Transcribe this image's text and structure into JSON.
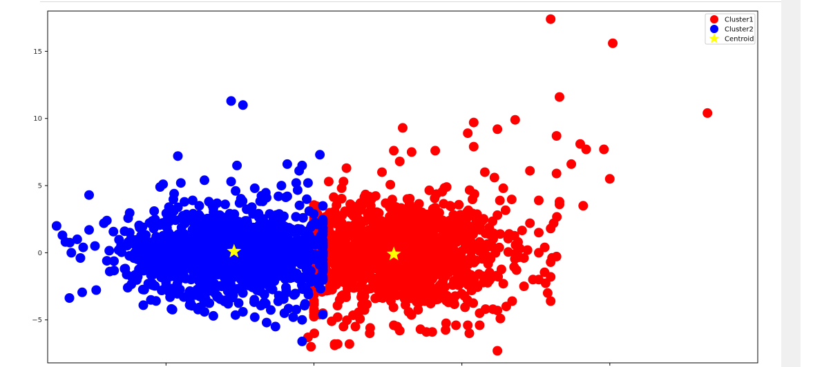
{
  "chart_data": {
    "type": "scatter",
    "title": "",
    "xlabel": "",
    "ylabel": "",
    "xlim": [
      -9.0,
      15.0
    ],
    "ylim": [
      -8.2,
      18.0
    ],
    "yticks": [
      {
        "value": -5,
        "label": "−5"
      },
      {
        "value": 0,
        "label": "0"
      },
      {
        "value": 5,
        "label": "5"
      },
      {
        "value": 10,
        "label": "10"
      },
      {
        "value": 15,
        "label": "15"
      }
    ],
    "xticks": [
      -5,
      0,
      5,
      10
    ],
    "grid": false,
    "legend": {
      "position": "top-right"
    },
    "series": [
      {
        "name": "Cluster1",
        "color": "#ff0000",
        "marker": "circle",
        "cloud": {
          "n": 1200,
          "cx": 2.8,
          "cy": 0.0,
          "sx": 1.8,
          "sy": 2.0,
          "xmin": 0.0,
          "xmax": 9.0,
          "ymin": -6.0,
          "ymax": 6.0
        },
        "points": [
          [
            8.0,
            17.4
          ],
          [
            10.1,
            15.6
          ],
          [
            13.3,
            10.4
          ],
          [
            8.3,
            11.6
          ],
          [
            8.2,
            8.7
          ],
          [
            6.8,
            9.9
          ],
          [
            5.4,
            9.7
          ],
          [
            3.0,
            9.3
          ],
          [
            5.2,
            8.9
          ],
          [
            6.2,
            9.2
          ],
          [
            5.4,
            7.9
          ],
          [
            9.0,
            8.1
          ],
          [
            9.2,
            7.7
          ],
          [
            9.8,
            7.7
          ],
          [
            7.3,
            6.1
          ],
          [
            8.7,
            6.6
          ],
          [
            8.2,
            5.9
          ],
          [
            10.0,
            5.5
          ],
          [
            6.1,
            5.6
          ],
          [
            6.4,
            4.8
          ],
          [
            4.1,
            7.6
          ],
          [
            3.3,
            7.5
          ],
          [
            2.7,
            7.6
          ],
          [
            2.9,
            6.8
          ],
          [
            1.1,
            6.3
          ],
          [
            2.3,
            6.0
          ],
          [
            0.5,
            5.3
          ],
          [
            1.0,
            5.3
          ],
          [
            9.1,
            3.5
          ],
          [
            8.3,
            3.6
          ],
          [
            8.3,
            3.8
          ],
          [
            7.6,
            3.9
          ],
          [
            8.0,
            1.8
          ],
          [
            8.1,
            2.2
          ],
          [
            7.3,
            2.2
          ],
          [
            7.6,
            1.5
          ],
          [
            7.8,
            0.4
          ],
          [
            7.6,
            0.0
          ],
          [
            8.0,
            -0.7
          ],
          [
            7.6,
            -2.0
          ],
          [
            7.4,
            -2.0
          ],
          [
            8.0,
            -1.8
          ],
          [
            7.9,
            -3.0
          ],
          [
            8.0,
            -3.6
          ],
          [
            7.1,
            -2.5
          ],
          [
            6.4,
            -2.3
          ],
          [
            6.7,
            -3.6
          ],
          [
            6.5,
            -4.0
          ],
          [
            6.2,
            -4.3
          ],
          [
            6.3,
            -4.9
          ],
          [
            5.8,
            -4.2
          ],
          [
            5.6,
            -4.5
          ],
          [
            5.6,
            -5.4
          ],
          [
            5.2,
            -5.4
          ],
          [
            4.8,
            -5.4
          ],
          [
            4.0,
            -5.9
          ],
          [
            3.8,
            -5.9
          ],
          [
            3.6,
            -5.7
          ],
          [
            2.9,
            -5.8
          ],
          [
            2.7,
            -5.4
          ],
          [
            1.9,
            -5.6
          ],
          [
            1.4,
            -5.5
          ],
          [
            1.0,
            -5.5
          ],
          [
            0.8,
            -4.8
          ],
          [
            0.6,
            -5.1
          ],
          [
            0.3,
            -4.5
          ],
          [
            0.2,
            -4.6
          ],
          [
            0.7,
            -6.8
          ],
          [
            0.8,
            -6.8
          ],
          [
            0.7,
            -6.9
          ],
          [
            -0.1,
            -7.0
          ],
          [
            1.2,
            -6.8
          ],
          [
            6.2,
            -7.3
          ],
          [
            -0.2,
            -6.3
          ],
          [
            5.6,
            0.8
          ],
          [
            5.0,
            1.2
          ],
          [
            6.6,
            1.4
          ],
          [
            6.9,
            0.8
          ],
          [
            6.2,
            2.8
          ],
          [
            4.6,
            3.5
          ]
        ]
      },
      {
        "name": "Cluster2",
        "color": "#0000ff",
        "marker": "circle",
        "cloud": {
          "n": 1200,
          "cx": -2.8,
          "cy": 0.0,
          "sx": 1.7,
          "sy": 1.6,
          "xmin": -9.0,
          "xmax": 0.3,
          "ymin": -5.0,
          "ymax": 5.5
        },
        "points": [
          [
            -2.8,
            11.3
          ],
          [
            -2.4,
            11.0
          ],
          [
            -4.6,
            7.2
          ],
          [
            0.2,
            7.3
          ],
          [
            -2.6,
            6.5
          ],
          [
            -0.9,
            6.6
          ],
          [
            -0.4,
            6.5
          ],
          [
            -0.5,
            6.1
          ],
          [
            -2.8,
            5.3
          ],
          [
            -3.7,
            5.4
          ],
          [
            -4.5,
            5.2
          ],
          [
            -5.1,
            5.1
          ],
          [
            -5.2,
            4.9
          ],
          [
            -0.2,
            5.2
          ],
          [
            -0.6,
            5.2
          ],
          [
            -1.1,
            5.0
          ],
          [
            -2.0,
            4.8
          ],
          [
            -7.6,
            4.3
          ],
          [
            -8.7,
            2.0
          ],
          [
            -8.5,
            1.3
          ],
          [
            -8.4,
            0.8
          ],
          [
            -8.2,
            0.0
          ],
          [
            -8.0,
            1.0
          ],
          [
            -7.8,
            0.4
          ],
          [
            -7.4,
            0.5
          ],
          [
            -7.0,
            -0.6
          ],
          [
            -6.9,
            -1.4
          ],
          [
            -6.4,
            -1.2
          ],
          [
            -6.0,
            -1.6
          ],
          [
            -7.1,
            2.2
          ],
          [
            -7.0,
            2.4
          ],
          [
            -6.4,
            1.6
          ],
          [
            -4.9,
            -2.9
          ],
          [
            -4.4,
            -3.3
          ],
          [
            -4.2,
            -3.9
          ],
          [
            -3.7,
            -4.4
          ],
          [
            -3.4,
            -4.7
          ],
          [
            -2.9,
            -3.8
          ],
          [
            -2.4,
            -4.4
          ],
          [
            -2.0,
            -4.8
          ],
          [
            -1.6,
            -5.2
          ],
          [
            -1.3,
            -5.5
          ],
          [
            -1.0,
            -4.5
          ],
          [
            -0.7,
            -4.8
          ],
          [
            -0.4,
            -5.0
          ],
          [
            -0.4,
            -6.6
          ],
          [
            -0.3,
            -3.8
          ],
          [
            -0.2,
            -2.9
          ],
          [
            -2.4,
            -3.0
          ],
          [
            -3.6,
            -2.8
          ],
          [
            -5.0,
            -2.2
          ],
          [
            -5.6,
            -2.3
          ],
          [
            -3.4,
            3.3
          ],
          [
            -2.1,
            3.4
          ],
          [
            -1.6,
            4.1
          ],
          [
            -0.9,
            4.2
          ],
          [
            -7.6,
            1.7
          ],
          [
            -6.6,
            0.2
          ],
          [
            -5.8,
            1.9
          ],
          [
            -5.4,
            3.1
          ],
          [
            -4.9,
            3.4
          ],
          [
            -4.1,
            3.9
          ],
          [
            -3.0,
            3.6
          ],
          [
            -1.2,
            4.2
          ]
        ]
      },
      {
        "name": "Centroid",
        "color": "#ffff00",
        "marker": "star",
        "points": [
          [
            -2.7,
            0.1
          ],
          [
            2.7,
            -0.1
          ]
        ]
      }
    ]
  }
}
